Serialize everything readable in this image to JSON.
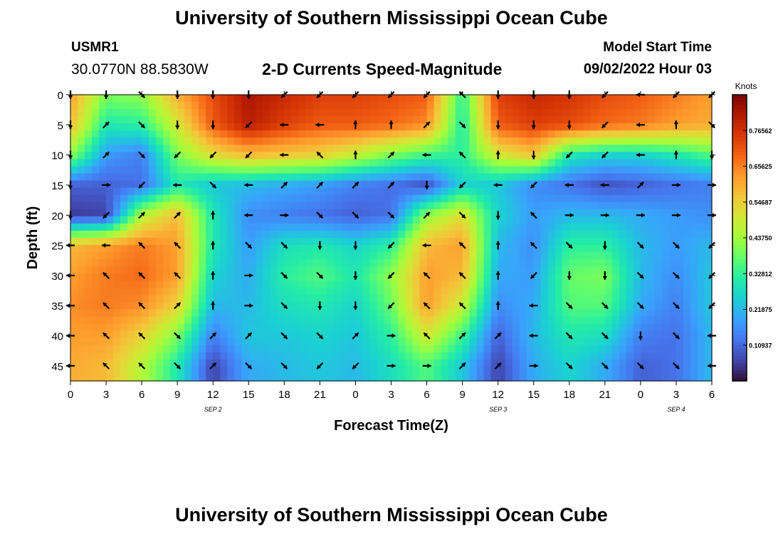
{
  "header": {
    "title": "University of Southern Mississippi Ocean Cube",
    "station": "USMR1",
    "coordinates": "30.0770N  88.5830W",
    "subtitle": "2-D Currents Speed-Magnitude",
    "model_start_label": "Model Start Time",
    "model_start_value": "09/02/2022 Hour 03"
  },
  "footer": {
    "title": "University of Southern Mississippi Ocean Cube"
  },
  "chart_data": {
    "type": "heatmap",
    "title": "2-D Currents Speed-Magnitude",
    "xlabel": "Forecast Time(Z)",
    "ylabel": "Depth (ft)",
    "x_ticks": [
      "0",
      "3",
      "6",
      "9",
      "12",
      "15",
      "18",
      "21",
      "0",
      "3",
      "6",
      "9",
      "12",
      "15",
      "18",
      "21",
      "0",
      "3",
      "6"
    ],
    "x_hours": [
      0,
      3,
      6,
      9,
      12,
      15,
      18,
      21,
      24,
      27,
      30,
      33,
      36,
      39,
      42,
      45,
      48,
      51,
      54
    ],
    "x_range": [
      0,
      54
    ],
    "date_labels": [
      {
        "text": "SEP 2",
        "hour": 12
      },
      {
        "text": "SEP 3",
        "hour": 36
      },
      {
        "text": "SEP 4",
        "hour": 51
      }
    ],
    "y_ticks": [
      0,
      5,
      10,
      15,
      20,
      25,
      30,
      35,
      40,
      45
    ],
    "y_range": [
      0,
      47.5
    ],
    "y_inverted": true,
    "colorbar": {
      "unit": "Knots",
      "range": [
        0,
        0.875
      ],
      "tick_labels": [
        "0.76562",
        "0.65625",
        "0.54687",
        "0.43750",
        "0.32812",
        "0.21875",
        "0.10937"
      ],
      "tick_values": [
        0.76562,
        0.65625,
        0.54687,
        0.4375,
        0.32812,
        0.21875,
        0.10937
      ],
      "colormap": [
        "#30123b",
        "#4145ab",
        "#4675ed",
        "#39a2fc",
        "#1bcfd4",
        "#24eca6",
        "#61fc6c",
        "#a4fc3b",
        "#d1e834",
        "#f3c63a",
        "#fe9b2d",
        "#f36315",
        "#d93806",
        "#b11901",
        "#7a0402"
      ]
    },
    "speed_grid_hours": [
      0,
      3,
      6,
      9,
      12,
      15,
      18,
      21,
      24,
      27,
      30,
      33,
      36,
      39,
      42,
      45,
      48,
      51,
      54
    ],
    "speed_grid_depths": [
      0,
      5,
      10,
      15,
      20,
      25,
      30,
      35,
      40,
      45
    ],
    "speed_knots": [
      [
        0.62,
        0.4,
        0.42,
        0.6,
        0.72,
        0.82,
        0.78,
        0.74,
        0.74,
        0.72,
        0.7,
        0.32,
        0.74,
        0.78,
        0.76,
        0.72,
        0.7,
        0.66,
        0.62
      ],
      [
        0.58,
        0.3,
        0.32,
        0.5,
        0.7,
        0.8,
        0.74,
        0.7,
        0.7,
        0.68,
        0.64,
        0.3,
        0.7,
        0.74,
        0.72,
        0.68,
        0.66,
        0.62,
        0.6
      ],
      [
        0.42,
        0.18,
        0.14,
        0.4,
        0.52,
        0.58,
        0.56,
        0.54,
        0.48,
        0.4,
        0.34,
        0.32,
        0.5,
        0.56,
        0.3,
        0.26,
        0.26,
        0.3,
        0.36
      ],
      [
        0.1,
        0.1,
        0.12,
        0.3,
        0.24,
        0.22,
        0.2,
        0.18,
        0.14,
        0.12,
        0.08,
        0.26,
        0.24,
        0.16,
        0.12,
        0.08,
        0.1,
        0.12,
        0.14
      ],
      [
        0.05,
        0.06,
        0.46,
        0.58,
        0.3,
        0.16,
        0.14,
        0.12,
        0.1,
        0.12,
        0.42,
        0.52,
        0.26,
        0.18,
        0.22,
        0.22,
        0.2,
        0.18,
        0.16
      ],
      [
        0.58,
        0.62,
        0.66,
        0.62,
        0.3,
        0.18,
        0.28,
        0.3,
        0.26,
        0.32,
        0.58,
        0.62,
        0.22,
        0.16,
        0.32,
        0.32,
        0.22,
        0.18,
        0.22
      ],
      [
        0.62,
        0.66,
        0.68,
        0.62,
        0.26,
        0.2,
        0.32,
        0.36,
        0.3,
        0.42,
        0.62,
        0.58,
        0.2,
        0.18,
        0.38,
        0.4,
        0.22,
        0.16,
        0.24
      ],
      [
        0.64,
        0.66,
        0.64,
        0.54,
        0.22,
        0.22,
        0.28,
        0.3,
        0.26,
        0.38,
        0.62,
        0.48,
        0.16,
        0.2,
        0.36,
        0.36,
        0.2,
        0.14,
        0.24
      ],
      [
        0.62,
        0.62,
        0.54,
        0.4,
        0.14,
        0.24,
        0.24,
        0.26,
        0.24,
        0.32,
        0.5,
        0.34,
        0.1,
        0.22,
        0.3,
        0.28,
        0.14,
        0.12,
        0.22
      ],
      [
        0.6,
        0.58,
        0.46,
        0.3,
        0.06,
        0.2,
        0.22,
        0.24,
        0.22,
        0.28,
        0.36,
        0.24,
        0.06,
        0.2,
        0.26,
        0.2,
        0.1,
        0.12,
        0.22
      ]
    ],
    "arrow_grid_hours": [
      0,
      3,
      6,
      9,
      12,
      15,
      18,
      21,
      24,
      27,
      30,
      33,
      36,
      39,
      42,
      45,
      48,
      51,
      54
    ],
    "arrow_grid_depths": [
      0,
      5,
      10,
      15,
      20,
      25,
      30,
      35,
      40,
      45
    ],
    "arrow_directions_deg": [
      [
        180,
        180,
        135,
        180,
        180,
        180,
        225,
        225,
        225,
        225,
        225,
        315,
        180,
        180,
        180,
        225,
        270,
        225,
        225
      ],
      [
        180,
        45,
        135,
        180,
        180,
        225,
        270,
        270,
        0,
        0,
        45,
        135,
        180,
        180,
        180,
        225,
        270,
        0,
        135
      ],
      [
        180,
        45,
        135,
        225,
        225,
        225,
        270,
        315,
        0,
        45,
        270,
        315,
        0,
        180,
        225,
        225,
        270,
        0,
        180
      ],
      [
        180,
        90,
        225,
        270,
        135,
        270,
        45,
        45,
        45,
        45,
        180,
        225,
        270,
        225,
        270,
        270,
        45,
        90,
        90
      ],
      [
        180,
        225,
        45,
        45,
        0,
        270,
        90,
        135,
        135,
        135,
        45,
        135,
        180,
        315,
        90,
        90,
        90,
        90,
        90
      ],
      [
        270,
        270,
        315,
        315,
        0,
        135,
        135,
        180,
        180,
        225,
        270,
        315,
        0,
        315,
        135,
        180,
        135,
        135,
        225
      ],
      [
        270,
        315,
        315,
        315,
        0,
        90,
        135,
        135,
        180,
        225,
        315,
        315,
        0,
        225,
        180,
        180,
        135,
        135,
        225
      ],
      [
        270,
        315,
        315,
        45,
        0,
        90,
        135,
        180,
        180,
        225,
        315,
        315,
        0,
        270,
        135,
        135,
        135,
        135,
        225
      ],
      [
        270,
        315,
        315,
        135,
        45,
        45,
        135,
        135,
        45,
        90,
        315,
        45,
        45,
        270,
        135,
        135,
        180,
        135,
        270
      ],
      [
        270,
        315,
        315,
        135,
        45,
        135,
        135,
        225,
        225,
        90,
        90,
        45,
        45,
        90,
        135,
        135,
        135,
        135,
        270
      ]
    ]
  }
}
